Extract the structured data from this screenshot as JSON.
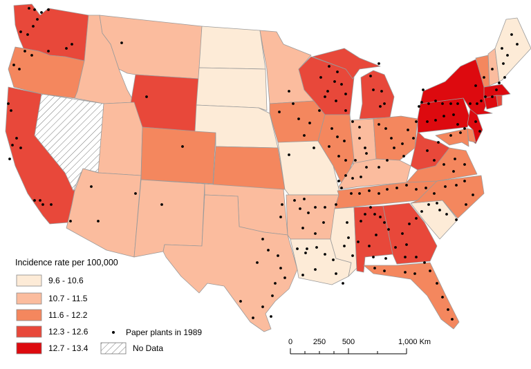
{
  "legend": {
    "title": "Incidence rate per 100,000",
    "classes": [
      {
        "label": "9.6 - 10.6",
        "color": "#fdebd7"
      },
      {
        "label": "10.7 - 11.5",
        "color": "#fbbc9e"
      },
      {
        "label": "11.6 - 12.2",
        "color": "#f4875e"
      },
      {
        "label": "12.3 - 12.6",
        "color": "#e8483a"
      },
      {
        "label": "12.7 - 13.4",
        "color": "#dd0a0f"
      }
    ],
    "nodata_label": "No Data",
    "points_label": "Paper plants in 1989"
  },
  "scalebar": {
    "ticks": [
      "0",
      "250",
      "500",
      "1,000 Km"
    ]
  },
  "states": [
    {
      "name": "WA",
      "class": 3
    },
    {
      "name": "OR",
      "class": 2
    },
    {
      "name": "CA",
      "class": 3
    },
    {
      "name": "NV",
      "class": -1
    },
    {
      "name": "ID",
      "class": 1
    },
    {
      "name": "MT",
      "class": 1
    },
    {
      "name": "WY",
      "class": 3
    },
    {
      "name": "UT",
      "class": 1
    },
    {
      "name": "AZ",
      "class": 1
    },
    {
      "name": "CO",
      "class": 2
    },
    {
      "name": "NM",
      "class": 1
    },
    {
      "name": "ND",
      "class": 0
    },
    {
      "name": "SD",
      "class": 0
    },
    {
      "name": "NE",
      "class": 0
    },
    {
      "name": "KS",
      "class": 2
    },
    {
      "name": "OK",
      "class": 1
    },
    {
      "name": "TX",
      "class": 1
    },
    {
      "name": "MN",
      "class": 1
    },
    {
      "name": "IA",
      "class": 2
    },
    {
      "name": "MO",
      "class": 0
    },
    {
      "name": "AR",
      "class": 1
    },
    {
      "name": "LA",
      "class": 0
    },
    {
      "name": "WI",
      "class": 3
    },
    {
      "name": "IL",
      "class": 2
    },
    {
      "name": "MI",
      "class": 3
    },
    {
      "name": "IN",
      "class": 1
    },
    {
      "name": "OH",
      "class": 2
    },
    {
      "name": "KY",
      "class": 1
    },
    {
      "name": "TN",
      "class": 2
    },
    {
      "name": "MS",
      "class": 0
    },
    {
      "name": "AL",
      "class": 3
    },
    {
      "name": "GA",
      "class": 3
    },
    {
      "name": "FL",
      "class": 2
    },
    {
      "name": "SC",
      "class": 0
    },
    {
      "name": "NC",
      "class": 2
    },
    {
      "name": "VA",
      "class": 2
    },
    {
      "name": "WV",
      "class": 3
    },
    {
      "name": "PA",
      "class": 4
    },
    {
      "name": "NY",
      "class": 4
    },
    {
      "name": "NJ",
      "class": 4
    },
    {
      "name": "DE",
      "class": 2
    },
    {
      "name": "MD",
      "class": 2
    },
    {
      "name": "CT",
      "class": 4
    },
    {
      "name": "RI",
      "class": 3
    },
    {
      "name": "MA",
      "class": 4
    },
    {
      "name": "VT",
      "class": 2
    },
    {
      "name": "NH",
      "class": 1
    },
    {
      "name": "ME",
      "class": 0
    }
  ]
}
